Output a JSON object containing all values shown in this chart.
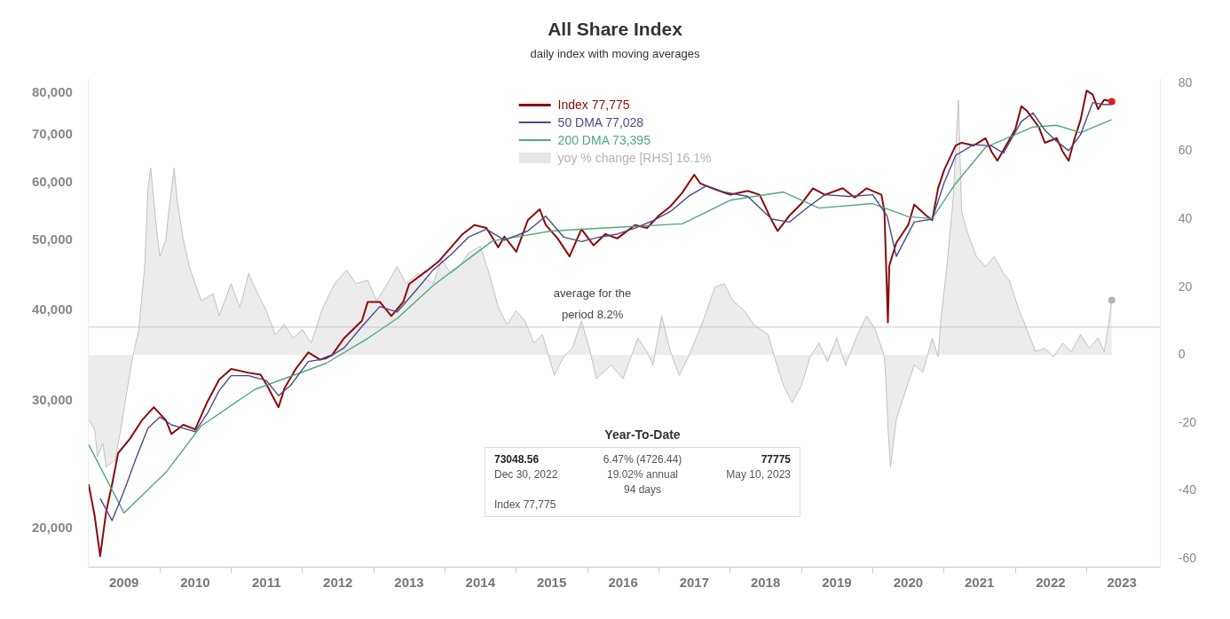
{
  "chart_data": {
    "type": "line",
    "title": "All Share Index",
    "subtitle": "daily index with moving averages",
    "xlim": [
      "2009-01-01",
      "2024-01-15"
    ],
    "xticks": [
      {
        "value": "2009-07-01",
        "label": "2009"
      },
      {
        "value": "2010-01-01",
        "label": null
      },
      {
        "value": "2010-07-01",
        "label": "2010"
      },
      {
        "value": "2011-01-01",
        "label": null
      },
      {
        "value": "2011-07-01",
        "label": "2011"
      },
      {
        "value": "2012-01-01",
        "label": null
      },
      {
        "value": "2012-07-01",
        "label": "2012"
      },
      {
        "value": "2013-01-01",
        "label": null
      },
      {
        "value": "2013-07-01",
        "label": "2013"
      },
      {
        "value": "2014-01-01",
        "label": null
      },
      {
        "value": "2014-07-01",
        "label": "2014"
      },
      {
        "value": "2015-01-01",
        "label": null
      },
      {
        "value": "2015-07-01",
        "label": "2015"
      },
      {
        "value": "2016-01-01",
        "label": null
      },
      {
        "value": "2016-07-01",
        "label": "2016"
      },
      {
        "value": "2017-01-01",
        "label": null
      },
      {
        "value": "2017-07-01",
        "label": "2017"
      },
      {
        "value": "2018-01-01",
        "label": null
      },
      {
        "value": "2018-07-01",
        "label": "2018"
      },
      {
        "value": "2019-01-01",
        "label": null
      },
      {
        "value": "2019-07-01",
        "label": "2019"
      },
      {
        "value": "2020-01-01",
        "label": null
      },
      {
        "value": "2020-07-01",
        "label": "2020"
      },
      {
        "value": "2021-01-01",
        "label": null
      },
      {
        "value": "2021-07-01",
        "label": "2021"
      },
      {
        "value": "2022-01-01",
        "label": null
      },
      {
        "value": "2022-07-01",
        "label": "2022"
      },
      {
        "value": "2023-01-01",
        "label": null
      },
      {
        "value": "2023-07-01",
        "label": "2023"
      }
    ],
    "ylim": [
      17700,
      83600
    ],
    "yticks": [
      {
        "value": 20000,
        "label": "20,000"
      },
      {
        "value": 30000,
        "label": "30,000"
      },
      {
        "value": 40000,
        "label": "40,000"
      },
      {
        "value": 50000,
        "label": "50,000"
      },
      {
        "value": 60000,
        "label": "60,000"
      },
      {
        "value": 70000,
        "label": "70,000"
      },
      {
        "value": 80000,
        "label": "80,000"
      }
    ],
    "y2lim": [
      -62.3,
      81.3
    ],
    "y2ticks": [
      -60,
      -40,
      -20,
      0,
      20,
      40,
      60,
      80
    ],
    "log": "y",
    "legend": "top",
    "ref_lines": [
      {
        "axis": "y2",
        "value": 8.2,
        "label": "average for the period 8.2%",
        "color": "#cccccc"
      }
    ],
    "annotations": [
      "Year-To-Date",
      "73048.56",
      "Dec 30, 2022",
      "Index 77,775",
      "6.47% (4726.44)",
      "19.02% annual",
      "94 days",
      "77775",
      "May 10, 2023"
    ],
    "series": [
      {
        "name": "Index 77,775",
        "type": "line",
        "color": "#8b0a0a",
        "x": [
          "2009-01",
          "2009-02",
          "2009-03",
          "2009-04",
          "2009-05",
          "2009-06",
          "2009-08",
          "2009-10",
          "2009-12",
          "2010-02",
          "2010-03",
          "2010-05",
          "2010-07",
          "2010-09",
          "2010-11",
          "2011-01",
          "2011-04",
          "2011-06",
          "2011-07",
          "2011-09",
          "2011-10",
          "2011-12",
          "2012-02",
          "2012-04",
          "2012-06",
          "2012-08",
          "2012-11",
          "2012-12",
          "2013-02",
          "2013-04",
          "2013-06",
          "2013-07",
          "2013-10",
          "2013-12",
          "2014-02",
          "2014-04",
          "2014-06",
          "2014-08",
          "2014-10",
          "2014-11",
          "2015-01",
          "2015-03",
          "2015-05",
          "2015-06",
          "2015-08",
          "2015-10",
          "2015-12",
          "2016-02",
          "2016-04",
          "2016-06",
          "2016-09",
          "2016-11",
          "2017-01",
          "2017-03",
          "2017-05",
          "2017-07",
          "2017-08",
          "2017-10",
          "2018-01",
          "2018-04",
          "2018-06",
          "2018-08",
          "2018-09",
          "2018-11",
          "2019-01",
          "2019-03",
          "2019-05",
          "2019-08",
          "2019-10",
          "2019-12",
          "2020-02-15",
          "2020-03-01",
          "2020-03-10",
          "2020-03-19",
          "2020-03-26",
          "2020-05",
          "2020-07",
          "2020-08",
          "2020-10",
          "2020-11",
          "2020-12",
          "2021-01",
          "2021-03",
          "2021-04",
          "2021-06",
          "2021-08",
          "2021-09",
          "2021-10",
          "2022-01",
          "2022-02",
          "2022-03",
          "2022-05",
          "2022-06",
          "2022-08",
          "2022-09",
          "2022-10",
          "2022-11",
          "2022-12",
          "2023-01",
          "2023-02",
          "2023-03",
          "2023-04",
          "2023-05-10"
        ],
        "values": [
          23000,
          20800,
          18300,
          21100,
          23000,
          25400,
          26600,
          28200,
          29400,
          28200,
          27000,
          27800,
          27400,
          29900,
          32100,
          33200,
          32800,
          32600,
          31600,
          29400,
          31200,
          33300,
          35000,
          34200,
          34700,
          36600,
          38700,
          41100,
          41100,
          39300,
          41100,
          43500,
          45400,
          46800,
          48900,
          51000,
          52500,
          52000,
          48900,
          50600,
          48200,
          53300,
          55200,
          52500,
          50300,
          47500,
          51800,
          49200,
          51000,
          50300,
          52500,
          52000,
          54100,
          55700,
          58200,
          61600,
          59900,
          59000,
          57800,
          58500,
          57800,
          53300,
          51500,
          54100,
          56200,
          59000,
          57800,
          59000,
          57300,
          59000,
          57800,
          54900,
          46100,
          38500,
          46100,
          49600,
          52500,
          56000,
          54100,
          53300,
          59000,
          62500,
          67600,
          68200,
          67600,
          69200,
          66300,
          64400,
          71200,
          76600,
          75500,
          71700,
          68200,
          69200,
          66300,
          64400,
          69200,
          73300,
          80500,
          79500,
          75900,
          78200,
          77775
        ]
      },
      {
        "name": "50 DMA 77,028",
        "type": "line",
        "color": "#4a4a8c",
        "x": [
          "2009-03",
          "2009-05",
          "2009-07",
          "2009-09",
          "2009-11",
          "2010-01",
          "2010-03",
          "2010-05",
          "2010-07",
          "2010-09",
          "2010-11",
          "2011-01",
          "2011-04",
          "2011-07",
          "2011-09",
          "2011-11",
          "2012-02",
          "2012-05",
          "2012-08",
          "2012-11",
          "2013-02",
          "2013-05",
          "2013-08",
          "2013-11",
          "2014-02",
          "2014-05",
          "2014-08",
          "2014-11",
          "2015-03",
          "2015-06",
          "2015-09",
          "2015-12",
          "2016-03",
          "2016-06",
          "2016-09",
          "2016-12",
          "2017-03",
          "2017-06",
          "2017-09",
          "2017-12",
          "2018-04",
          "2018-08",
          "2018-11",
          "2019-02",
          "2019-05",
          "2019-09",
          "2020-01",
          "2020-03-15",
          "2020-05",
          "2020-08",
          "2020-11",
          "2021-01",
          "2021-03",
          "2021-06",
          "2021-09",
          "2021-11",
          "2022-02",
          "2022-04",
          "2022-06",
          "2022-08",
          "2022-10",
          "2022-12",
          "2023-02",
          "2023-04",
          "2023-05-10"
        ],
        "values": [
          22000,
          20500,
          22500,
          25000,
          27500,
          28500,
          27800,
          27500,
          27200,
          28800,
          31000,
          32500,
          32500,
          32000,
          30500,
          31500,
          34000,
          34300,
          35500,
          38000,
          40500,
          39800,
          42500,
          45500,
          47800,
          50500,
          51800,
          50000,
          51500,
          54000,
          50500,
          49800,
          50500,
          51000,
          52000,
          53200,
          54800,
          57500,
          59500,
          58300,
          57500,
          53500,
          53000,
          55500,
          57800,
          57500,
          57800,
          54000,
          47500,
          53000,
          53500,
          60000,
          65500,
          67800,
          67500,
          66000,
          73000,
          75000,
          71000,
          68500,
          66500,
          70000,
          77500,
          77000,
          77028
        ]
      },
      {
        "name": "200 DMA 73,395",
        "type": "line",
        "color": "#4fa882",
        "x": [
          "2009-01",
          "2009-07",
          "2010-02",
          "2010-08",
          "2011-05",
          "2012-05",
          "2012-12",
          "2013-05",
          "2013-11",
          "2014-09",
          "2015-07",
          "2016-04",
          "2017-05",
          "2018-01",
          "2018-10",
          "2019-04",
          "2020-01",
          "2020-07",
          "2020-11",
          "2021-03",
          "2021-08",
          "2022-04",
          "2022-08",
          "2022-12",
          "2023-05-10"
        ],
        "values": [
          26100,
          21000,
          23900,
          27700,
          31100,
          33800,
          36600,
          39000,
          43300,
          49900,
          51500,
          52000,
          52700,
          56800,
          58300,
          55400,
          56200,
          53900,
          53600,
          59900,
          67200,
          71700,
          72100,
          70400,
          73395
        ]
      },
      {
        "name": "yoy % change [RHS] 16.1%",
        "type": "area",
        "axis": "y2",
        "color": "#b4b4b4",
        "x": [
          "2009-01-01",
          "2009-02-01",
          "2009-02-15",
          "2009-03-15",
          "2009-04-01",
          "2009-05-15",
          "2009-06-15",
          "2009-07-15",
          "2009-08-15",
          "2009-09-15",
          "2009-10-15",
          "2009-11-01",
          "2009-11-15",
          "2009-12-15",
          "2010-01-01",
          "2010-02-01",
          "2010-02-15",
          "2010-03-15",
          "2010-04-01",
          "2010-05-01",
          "2010-06-01",
          "2010-07-01",
          "2010-08-01",
          "2010-10-01",
          "2010-11-01",
          "2011-01-01",
          "2011-02-15",
          "2011-04-01",
          "2011-05-01",
          "2011-07-01",
          "2011-08-15",
          "2011-10-01",
          "2011-11-15",
          "2012-01-01",
          "2012-02-15",
          "2012-04-15",
          "2012-06-15",
          "2012-08-15",
          "2012-10-01",
          "2012-12-01",
          "2013-01-15",
          "2013-03-01",
          "2013-05-01",
          "2013-06-15",
          "2013-08-15",
          "2013-11-01",
          "2013-12-15",
          "2014-02-01",
          "2014-03-15",
          "2014-05-01",
          "2014-07-01",
          "2014-08-15",
          "2014-10-01",
          "2014-11-15",
          "2015-01-01",
          "2015-02-15",
          "2015-04-01",
          "2015-05-15",
          "2015-07-15",
          "2015-09-01",
          "2015-10-15",
          "2015-12-01",
          "2016-01-15",
          "2016-02-15",
          "2016-05-01",
          "2016-07-01",
          "2016-09-15",
          "2016-11-01",
          "2016-12-01",
          "2017-01-15",
          "2017-03-01",
          "2017-04-15",
          "2017-06-01",
          "2017-08-15",
          "2017-10-15",
          "2017-12-01",
          "2018-01-15",
          "2018-03-15",
          "2018-05-01",
          "2018-07-15",
          "2018-08-15",
          "2018-10-01",
          "2018-11-15",
          "2019-01-01",
          "2019-02-15",
          "2019-04-01",
          "2019-05-15",
          "2019-07-01",
          "2019-08-15",
          "2019-10-15",
          "2019-12-01",
          "2020-01-15",
          "2020-03-01",
          "2020-03-10",
          "2020-03-20",
          "2020-04-01",
          "2020-05-01",
          "2020-06-15",
          "2020-08-01",
          "2020-09-15",
          "2020-11-01",
          "2020-12-01",
          "2020-12-15",
          "2021-01-15",
          "2021-02-15",
          "2021-03-15",
          "2021-04-01",
          "2021-05-01",
          "2021-06-15",
          "2021-08-01",
          "2021-09-15",
          "2021-11-01",
          "2021-12-01",
          "2022-01-15",
          "2022-03-01",
          "2022-04-15",
          "2022-06-01",
          "2022-07-15",
          "2022-09-01",
          "2022-10-15",
          "2022-12-01",
          "2023-01-15",
          "2023-03-01",
          "2023-04-01",
          "2023-04-20",
          "2023-05-10"
        ],
        "values": [
          -19,
          -22,
          -30,
          -26,
          -33,
          -31,
          -22,
          -11,
          -0.5,
          7.5,
          26,
          49,
          55,
          37,
          29,
          34,
          42,
          55,
          45,
          34,
          26,
          21,
          16,
          18,
          11.5,
          21,
          14,
          24,
          20,
          13,
          6,
          9,
          5,
          7.5,
          3.5,
          14,
          21,
          25,
          21,
          22,
          16,
          20,
          26,
          21,
          24,
          21,
          28,
          24,
          26,
          30,
          32,
          24,
          14,
          9,
          13,
          10,
          3.5,
          6,
          -6,
          -0.5,
          2,
          10,
          1,
          -7,
          -3,
          -7,
          5,
          1,
          -3,
          11.5,
          1,
          -6,
          -0.5,
          10,
          20,
          21,
          16,
          13,
          9,
          6,
          -0.5,
          -9,
          -14,
          -9,
          -0.5,
          3.5,
          -2,
          5,
          -3,
          6,
          11.5,
          7.5,
          -0.5,
          -9,
          -22,
          -33,
          -19,
          -11,
          -3,
          -5,
          5,
          -0.5,
          10,
          26,
          45,
          75,
          42,
          36,
          29,
          26,
          29,
          24,
          22,
          14,
          7.5,
          1,
          2,
          -0.5,
          3.5,
          1,
          6,
          2,
          5,
          1,
          7.5,
          16.1
        ]
      }
    ]
  }
}
